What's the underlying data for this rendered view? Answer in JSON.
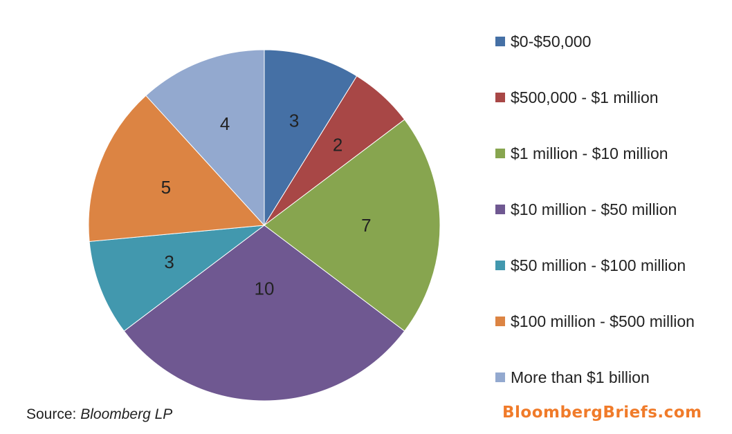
{
  "chart_data": {
    "type": "pie",
    "categories": [
      "$0-$50,000",
      "$500,000 - $1 million",
      "$1 million - $10 million",
      "$10 million - $50 million",
      "$50 million - $100 million",
      "$100 million - $500 million",
      "More than $1 billion"
    ],
    "values": [
      3,
      2,
      7,
      10,
      3,
      5,
      4
    ],
    "colors": [
      "#4570a5",
      "#a84746",
      "#87a54f",
      "#6f5891",
      "#4298ae",
      "#dc8443",
      "#93a9cf"
    ],
    "data_labels": [
      "3",
      "2",
      "7",
      "10",
      "3",
      "5",
      "4"
    ],
    "start_angle": "12 o'clock",
    "direction": "clockwise",
    "legend": {
      "placement": "right",
      "items": [
        "$0-$50,000",
        "$500,000 - $1 million",
        "$1 million - $10 million",
        "$10 million - $50 million",
        "$50 million - $100 million",
        "$100 million - $500 million",
        "More than $1 billion"
      ]
    }
  },
  "source": {
    "prefix": "Source: ",
    "name": "Bloomberg LP"
  },
  "brand": {
    "text": "BloombergBriefs.com",
    "color": "#f07b2a"
  }
}
